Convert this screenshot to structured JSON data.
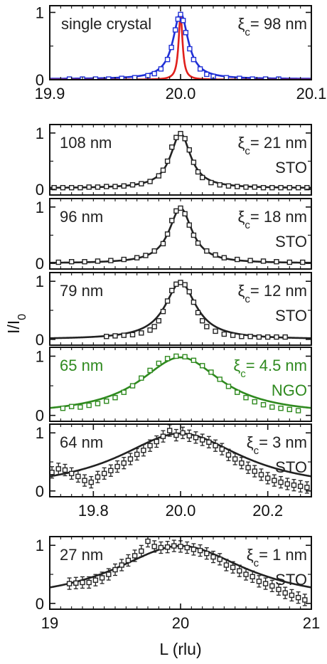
{
  "figure": {
    "ylabel_main": "I/I",
    "ylabel_sub": "0",
    "xlabel": "L (rlu)"
  },
  "colors": {
    "black": "#222222",
    "blue": "#1f2fd6",
    "red": "#e0201c",
    "green": "#2f8a1f"
  },
  "chart_data": [
    {
      "type": "scatter",
      "id": "p0",
      "title": "",
      "label_left": "single crystal",
      "xi_value": "= 98 nm",
      "substrate": "",
      "xlim": [
        19.9,
        20.1
      ],
      "ylim": [
        0,
        1.1
      ],
      "xticks": [
        19.9,
        20.0,
        20.1
      ],
      "xtick_labels": [
        "19.9",
        "20.0",
        "20.1"
      ],
      "yticks": [
        0,
        1
      ],
      "ytick_labels": [
        "0",
        "1"
      ],
      "series": [
        {
          "kind": "points",
          "color": "blue",
          "x": [
            19.915,
            19.925,
            19.935,
            19.945,
            19.955,
            19.965,
            19.975,
            19.98,
            19.985,
            19.99,
            19.993,
            19.996,
            19.998,
            20.0,
            20.002,
            20.004,
            20.007,
            20.01,
            20.015,
            20.02,
            20.025,
            20.035,
            20.045,
            20.055,
            20.065,
            20.075
          ],
          "y": [
            0.01,
            0.01,
            0.01,
            0.01,
            0.02,
            0.03,
            0.06,
            0.09,
            0.16,
            0.3,
            0.48,
            0.74,
            0.9,
            0.97,
            0.88,
            0.7,
            0.46,
            0.3,
            0.16,
            0.08,
            0.05,
            0.03,
            0.02,
            0.01,
            0.01,
            0.01
          ]
        },
        {
          "kind": "lorentz",
          "color": "blue",
          "x0": 20.0,
          "w": 0.007,
          "bg": 0.01,
          "amp": 0.98
        },
        {
          "kind": "lorentz",
          "color": "red",
          "x0": 20.0,
          "w": 0.0018,
          "bg": 0.0,
          "amp": 0.97
        }
      ]
    },
    {
      "type": "scatter",
      "id": "p1",
      "label_left": "108 nm",
      "xi_value": "= 21 nm",
      "substrate": "STO",
      "xlim": [
        19.7,
        20.3
      ],
      "ylim": [
        -0.1,
        1.15
      ],
      "yticks": [
        0,
        1
      ],
      "ytick_labels": [
        "0",
        "1"
      ],
      "series": [
        {
          "kind": "points",
          "color": "black",
          "x": [
            19.71,
            19.73,
            19.75,
            19.77,
            19.79,
            19.81,
            19.83,
            19.85,
            19.87,
            19.89,
            19.91,
            19.93,
            19.95,
            19.96,
            19.97,
            19.98,
            19.99,
            20.0,
            20.01,
            20.02,
            20.03,
            20.04,
            20.05,
            20.07,
            20.09,
            20.11,
            20.13,
            20.15,
            20.17,
            20.19,
            20.21,
            20.23,
            20.25,
            20.27,
            20.29
          ],
          "y": [
            0.03,
            0.03,
            0.03,
            0.03,
            0.04,
            0.04,
            0.05,
            0.05,
            0.06,
            0.08,
            0.1,
            0.14,
            0.24,
            0.34,
            0.5,
            0.75,
            0.92,
            0.99,
            0.9,
            0.7,
            0.48,
            0.31,
            0.21,
            0.12,
            0.08,
            0.06,
            0.05,
            0.04,
            0.04,
            0.03,
            0.03,
            0.03,
            0.03,
            0.03,
            0.03
          ]
        },
        {
          "kind": "lorentz",
          "color": "black",
          "x0": 20.0,
          "w": 0.028,
          "bg": 0.02,
          "amp": 0.97
        }
      ]
    },
    {
      "type": "scatter",
      "id": "p2",
      "label_left": "96 nm",
      "xi_value": "= 18 nm",
      "substrate": "STO",
      "xlim": [
        19.7,
        20.3
      ],
      "ylim": [
        -0.1,
        1.15
      ],
      "yticks": [
        0,
        1
      ],
      "ytick_labels": [
        "0",
        "1"
      ],
      "series": [
        {
          "kind": "points",
          "color": "black",
          "x": [
            19.72,
            19.75,
            19.78,
            19.81,
            19.84,
            19.87,
            19.9,
            19.92,
            19.94,
            19.96,
            19.97,
            19.98,
            19.99,
            20.0,
            20.01,
            20.02,
            20.03,
            20.04,
            20.06,
            20.08,
            20.1,
            20.13,
            20.16,
            20.19,
            20.22,
            20.25,
            20.28
          ],
          "y": [
            0.02,
            0.03,
            0.03,
            0.04,
            0.05,
            0.07,
            0.1,
            0.14,
            0.22,
            0.35,
            0.52,
            0.76,
            0.93,
            0.98,
            0.88,
            0.68,
            0.5,
            0.36,
            0.22,
            0.15,
            0.1,
            0.07,
            0.05,
            0.04,
            0.03,
            0.02,
            0.02
          ]
        },
        {
          "kind": "lorentz",
          "color": "black",
          "x0": 20.0,
          "w": 0.032,
          "bg": 0.0,
          "amp": 0.98
        }
      ]
    },
    {
      "type": "scatter",
      "id": "p3",
      "label_left": "79 nm",
      "xi_value": "= 12 nm",
      "substrate": "STO",
      "xlim": [
        19.7,
        20.3
      ],
      "ylim": [
        -0.1,
        1.15
      ],
      "yticks": [
        0,
        1
      ],
      "ytick_labels": [
        "0",
        "1"
      ],
      "series": [
        {
          "kind": "points",
          "color": "black",
          "x": [
            19.83,
            19.85,
            19.87,
            19.89,
            19.91,
            19.93,
            19.94,
            19.95,
            19.96,
            19.97,
            19.98,
            19.99,
            20.0,
            20.01,
            20.02,
            20.03,
            20.04,
            20.05,
            20.06,
            20.08,
            20.1,
            20.12,
            20.14,
            20.16,
            20.18,
            20.2,
            20.22,
            20.24
          ],
          "y": [
            0.05,
            0.06,
            0.07,
            0.08,
            0.11,
            0.16,
            0.22,
            0.32,
            0.48,
            0.66,
            0.84,
            0.95,
            0.98,
            0.94,
            0.82,
            0.64,
            0.46,
            0.32,
            0.22,
            0.14,
            0.09,
            0.07,
            0.05,
            0.05,
            0.04,
            0.04,
            0.04,
            0.04
          ]
        },
        {
          "kind": "lorentz",
          "color": "black",
          "x0": 20.0,
          "w": 0.043,
          "bg": 0.0,
          "amp": 0.98
        }
      ]
    },
    {
      "type": "scatter",
      "id": "p4",
      "label_left": "65 nm",
      "xi_value": "= 4.5 nm",
      "substrate": "NGO",
      "label_color": "green",
      "xlim": [
        19.7,
        20.3
      ],
      "ylim": [
        -0.1,
        1.15
      ],
      "yticks": [
        0,
        1
      ],
      "ytick_labels": [
        "0",
        "1"
      ],
      "series": [
        {
          "kind": "points",
          "color": "green",
          "x": [
            19.73,
            19.75,
            19.77,
            19.79,
            19.81,
            19.83,
            19.85,
            19.87,
            19.89,
            19.91,
            19.93,
            19.95,
            19.97,
            19.99,
            20.01,
            20.03,
            20.05,
            20.07,
            20.09,
            20.11,
            20.13,
            20.15,
            20.17,
            20.19,
            20.21,
            20.23,
            20.25,
            20.27
          ],
          "y": [
            0.12,
            0.15,
            0.14,
            0.17,
            0.2,
            0.24,
            0.3,
            0.39,
            0.5,
            0.63,
            0.76,
            0.88,
            0.96,
            1.0,
            0.99,
            0.93,
            0.84,
            0.73,
            0.61,
            0.49,
            0.39,
            0.3,
            0.23,
            0.18,
            0.14,
            0.12,
            0.1,
            0.08
          ]
        },
        {
          "kind": "lorentz",
          "color": "green",
          "x0": 20.0,
          "w": 0.115,
          "bg": 0.0,
          "amp": 0.98
        }
      ]
    },
    {
      "type": "scatter",
      "id": "p5",
      "label_left": "64 nm",
      "xi_value": "= 3 nm",
      "substrate": "STO",
      "xlim": [
        19.7,
        20.3
      ],
      "ylim": [
        -0.1,
        1.15
      ],
      "xticks": [
        19.8,
        20.0,
        20.2
      ],
      "xtick_labels": [
        "19.8",
        "20.0",
        "20.2"
      ],
      "yticks": [
        0,
        1
      ],
      "ytick_labels": [
        "0",
        "1"
      ],
      "series": [
        {
          "kind": "points",
          "color": "black",
          "errorbars": true,
          "x": [
            19.705,
            19.72,
            19.735,
            19.75,
            19.765,
            19.78,
            19.795,
            19.81,
            19.825,
            19.84,
            19.855,
            19.87,
            19.885,
            19.9,
            19.915,
            19.93,
            19.945,
            19.96,
            19.975,
            19.99,
            20.005,
            20.02,
            20.035,
            20.05,
            20.065,
            20.08,
            20.095,
            20.11,
            20.125,
            20.14,
            20.155,
            20.17,
            20.185,
            20.2,
            20.215,
            20.23,
            20.245,
            20.26,
            20.275,
            20.29
          ],
          "y": [
            0.32,
            0.38,
            0.36,
            0.3,
            0.25,
            0.18,
            0.15,
            0.24,
            0.3,
            0.35,
            0.42,
            0.48,
            0.55,
            0.63,
            0.7,
            0.78,
            0.85,
            0.94,
            1.04,
            0.96,
            1.0,
            0.95,
            0.92,
            0.88,
            0.84,
            0.78,
            0.72,
            0.62,
            0.55,
            0.48,
            0.4,
            0.34,
            0.28,
            0.22,
            0.18,
            0.15,
            0.12,
            0.1,
            0.08,
            0.06
          ]
        },
        {
          "kind": "lorentz",
          "color": "black",
          "x0": 20.0,
          "w": 0.175,
          "bg": 0.0,
          "amp": 0.99
        }
      ]
    },
    {
      "type": "scatter",
      "id": "p6",
      "label_left": "27 nm",
      "xi_value": "= 1 nm",
      "substrate": "STO",
      "xlim": [
        19.0,
        21.0
      ],
      "ylim": [
        -0.1,
        1.15
      ],
      "xticks": [
        19,
        20,
        21
      ],
      "xtick_labels": [
        "19",
        "20",
        "21"
      ],
      "yticks": [
        0,
        1
      ],
      "ytick_labels": [
        "0",
        "1"
      ],
      "series": [
        {
          "kind": "points",
          "color": "black",
          "errorbars": true,
          "x": [
            19.15,
            19.2,
            19.25,
            19.3,
            19.35,
            19.4,
            19.45,
            19.5,
            19.55,
            19.6,
            19.65,
            19.7,
            19.75,
            19.8,
            19.85,
            19.9,
            19.95,
            20.0,
            20.05,
            20.1,
            20.15,
            20.2,
            20.25,
            20.3,
            20.35,
            20.4,
            20.45,
            20.5,
            20.55,
            20.6,
            20.65,
            20.7,
            20.75,
            20.8,
            20.85,
            20.9,
            20.95
          ],
          "y": [
            0.34,
            0.35,
            0.36,
            0.36,
            0.4,
            0.44,
            0.5,
            0.58,
            0.66,
            0.74,
            0.82,
            0.9,
            1.07,
            0.98,
            0.96,
            0.97,
            0.99,
            0.98,
            0.96,
            0.93,
            0.91,
            0.86,
            0.8,
            0.76,
            0.66,
            0.62,
            0.56,
            0.5,
            0.46,
            0.38,
            0.34,
            0.3,
            0.24,
            0.18,
            0.14,
            0.1,
            0.06
          ]
        },
        {
          "kind": "lorentz",
          "color": "black",
          "x0": 20.0,
          "w": 0.62,
          "bg": 0.0,
          "amp": 0.99
        }
      ]
    }
  ]
}
